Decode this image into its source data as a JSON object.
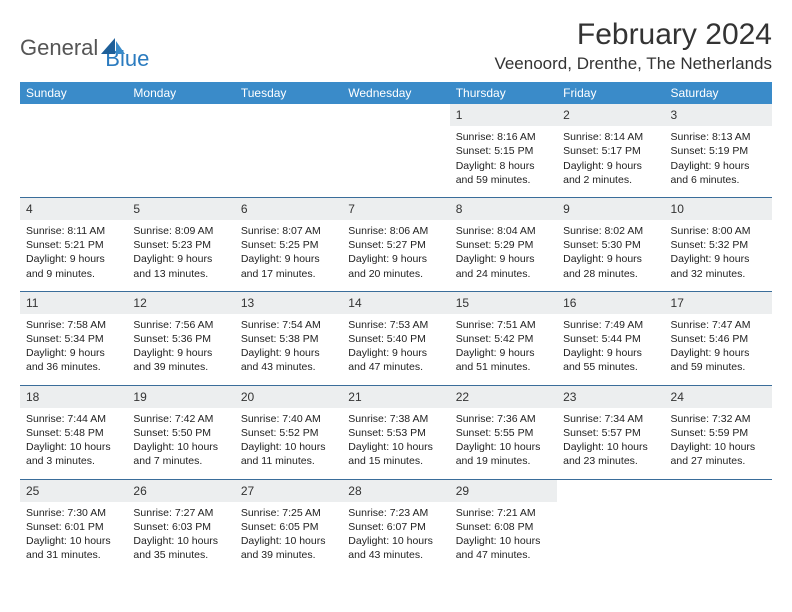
{
  "brand": {
    "general": "General",
    "blue": "Blue"
  },
  "title": {
    "month": "February 2024",
    "location": "Veenoord, Drenthe, The Netherlands"
  },
  "colors": {
    "header_bg": "#3a8bc9",
    "header_text": "#ffffff",
    "daynum_bg": "#eceeef",
    "row_border": "#3a6d9a",
    "text": "#222222",
    "brand_gray": "#555555",
    "brand_blue": "#2b7bbf"
  },
  "weekdays": [
    "Sunday",
    "Monday",
    "Tuesday",
    "Wednesday",
    "Thursday",
    "Friday",
    "Saturday"
  ],
  "weeks": [
    [
      null,
      null,
      null,
      null,
      {
        "n": "1",
        "sunrise": "8:16 AM",
        "sunset": "5:15 PM",
        "daylight": "8 hours and 59 minutes."
      },
      {
        "n": "2",
        "sunrise": "8:14 AM",
        "sunset": "5:17 PM",
        "daylight": "9 hours and 2 minutes."
      },
      {
        "n": "3",
        "sunrise": "8:13 AM",
        "sunset": "5:19 PM",
        "daylight": "9 hours and 6 minutes."
      }
    ],
    [
      {
        "n": "4",
        "sunrise": "8:11 AM",
        "sunset": "5:21 PM",
        "daylight": "9 hours and 9 minutes."
      },
      {
        "n": "5",
        "sunrise": "8:09 AM",
        "sunset": "5:23 PM",
        "daylight": "9 hours and 13 minutes."
      },
      {
        "n": "6",
        "sunrise": "8:07 AM",
        "sunset": "5:25 PM",
        "daylight": "9 hours and 17 minutes."
      },
      {
        "n": "7",
        "sunrise": "8:06 AM",
        "sunset": "5:27 PM",
        "daylight": "9 hours and 20 minutes."
      },
      {
        "n": "8",
        "sunrise": "8:04 AM",
        "sunset": "5:29 PM",
        "daylight": "9 hours and 24 minutes."
      },
      {
        "n": "9",
        "sunrise": "8:02 AM",
        "sunset": "5:30 PM",
        "daylight": "9 hours and 28 minutes."
      },
      {
        "n": "10",
        "sunrise": "8:00 AM",
        "sunset": "5:32 PM",
        "daylight": "9 hours and 32 minutes."
      }
    ],
    [
      {
        "n": "11",
        "sunrise": "7:58 AM",
        "sunset": "5:34 PM",
        "daylight": "9 hours and 36 minutes."
      },
      {
        "n": "12",
        "sunrise": "7:56 AM",
        "sunset": "5:36 PM",
        "daylight": "9 hours and 39 minutes."
      },
      {
        "n": "13",
        "sunrise": "7:54 AM",
        "sunset": "5:38 PM",
        "daylight": "9 hours and 43 minutes."
      },
      {
        "n": "14",
        "sunrise": "7:53 AM",
        "sunset": "5:40 PM",
        "daylight": "9 hours and 47 minutes."
      },
      {
        "n": "15",
        "sunrise": "7:51 AM",
        "sunset": "5:42 PM",
        "daylight": "9 hours and 51 minutes."
      },
      {
        "n": "16",
        "sunrise": "7:49 AM",
        "sunset": "5:44 PM",
        "daylight": "9 hours and 55 minutes."
      },
      {
        "n": "17",
        "sunrise": "7:47 AM",
        "sunset": "5:46 PM",
        "daylight": "9 hours and 59 minutes."
      }
    ],
    [
      {
        "n": "18",
        "sunrise": "7:44 AM",
        "sunset": "5:48 PM",
        "daylight": "10 hours and 3 minutes."
      },
      {
        "n": "19",
        "sunrise": "7:42 AM",
        "sunset": "5:50 PM",
        "daylight": "10 hours and 7 minutes."
      },
      {
        "n": "20",
        "sunrise": "7:40 AM",
        "sunset": "5:52 PM",
        "daylight": "10 hours and 11 minutes."
      },
      {
        "n": "21",
        "sunrise": "7:38 AM",
        "sunset": "5:53 PM",
        "daylight": "10 hours and 15 minutes."
      },
      {
        "n": "22",
        "sunrise": "7:36 AM",
        "sunset": "5:55 PM",
        "daylight": "10 hours and 19 minutes."
      },
      {
        "n": "23",
        "sunrise": "7:34 AM",
        "sunset": "5:57 PM",
        "daylight": "10 hours and 23 minutes."
      },
      {
        "n": "24",
        "sunrise": "7:32 AM",
        "sunset": "5:59 PM",
        "daylight": "10 hours and 27 minutes."
      }
    ],
    [
      {
        "n": "25",
        "sunrise": "7:30 AM",
        "sunset": "6:01 PM",
        "daylight": "10 hours and 31 minutes."
      },
      {
        "n": "26",
        "sunrise": "7:27 AM",
        "sunset": "6:03 PM",
        "daylight": "10 hours and 35 minutes."
      },
      {
        "n": "27",
        "sunrise": "7:25 AM",
        "sunset": "6:05 PM",
        "daylight": "10 hours and 39 minutes."
      },
      {
        "n": "28",
        "sunrise": "7:23 AM",
        "sunset": "6:07 PM",
        "daylight": "10 hours and 43 minutes."
      },
      {
        "n": "29",
        "sunrise": "7:21 AM",
        "sunset": "6:08 PM",
        "daylight": "10 hours and 47 minutes."
      },
      null,
      null
    ]
  ],
  "labels": {
    "sunrise": "Sunrise: ",
    "sunset": "Sunset: ",
    "daylight": "Daylight: "
  }
}
